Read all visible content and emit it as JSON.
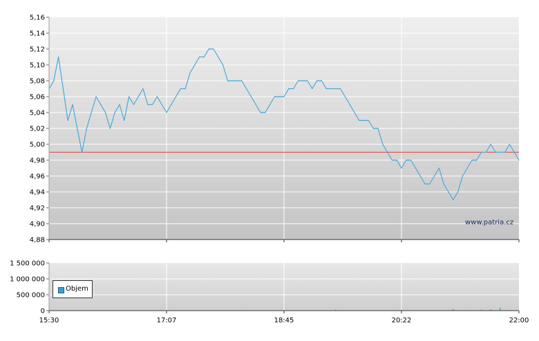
{
  "chart_data": [
    {
      "type": "line",
      "title": "",
      "xlabel": "",
      "ylabel": "",
      "ylim": [
        4.88,
        5.16
      ],
      "y_ticks": [
        "5,16",
        "5,14",
        "5,12",
        "5,10",
        "5,08",
        "5,06",
        "5,04",
        "5,02",
        "5,00",
        "4,98",
        "4,96",
        "4,94",
        "4,92",
        "4,90",
        "4,88"
      ],
      "x_ticks": [
        "15:30",
        "17:07",
        "18:45",
        "20:22",
        "22:00"
      ],
      "reference_line": {
        "value": 4.99,
        "color": "#e04040"
      },
      "grid": true,
      "line_color": "#4aa8d8",
      "x": [
        0,
        2,
        4,
        6,
        8,
        10,
        12,
        14,
        16,
        18,
        20,
        22,
        24,
        26,
        28,
        30,
        32,
        34,
        36,
        38,
        40,
        42,
        44,
        46,
        48,
        50,
        52,
        54,
        56,
        58,
        60,
        62,
        64,
        66,
        68,
        70,
        72,
        74,
        76,
        78,
        80,
        82,
        84,
        86,
        88,
        90,
        92,
        94,
        96,
        98,
        100,
        102,
        104,
        106,
        108,
        110,
        112,
        114,
        116,
        118,
        120,
        122,
        124,
        126,
        128,
        130,
        132,
        134,
        136,
        138,
        140,
        142,
        144,
        146,
        148,
        150,
        152,
        154,
        156,
        158,
        160,
        162,
        164,
        166,
        168,
        170,
        172,
        174,
        176,
        178,
        180,
        182,
        184,
        186,
        188,
        190,
        192,
        194,
        196,
        198,
        200
      ],
      "values": [
        5.07,
        5.08,
        5.11,
        5.07,
        5.03,
        5.05,
        5.02,
        4.99,
        5.02,
        5.04,
        5.06,
        5.05,
        5.04,
        5.02,
        5.04,
        5.05,
        5.03,
        5.06,
        5.05,
        5.06,
        5.07,
        5.05,
        5.05,
        5.06,
        5.05,
        5.04,
        5.05,
        5.06,
        5.07,
        5.07,
        5.09,
        5.1,
        5.11,
        5.11,
        5.12,
        5.12,
        5.11,
        5.1,
        5.08,
        5.08,
        5.08,
        5.08,
        5.07,
        5.06,
        5.05,
        5.04,
        5.04,
        5.05,
        5.06,
        5.06,
        5.06,
        5.07,
        5.07,
        5.08,
        5.08,
        5.08,
        5.07,
        5.08,
        5.08,
        5.07,
        5.07,
        5.07,
        5.07,
        5.06,
        5.05,
        5.04,
        5.03,
        5.03,
        5.03,
        5.02,
        5.02,
        5.0,
        4.99,
        4.98,
        4.98,
        4.97,
        4.98,
        4.98,
        4.97,
        4.96,
        4.95,
        4.95,
        4.96,
        4.97,
        4.95,
        4.94,
        4.93,
        4.94,
        4.96,
        4.97,
        4.98,
        4.98,
        4.99,
        4.99,
        5.0,
        4.99,
        4.99,
        4.99,
        5.0,
        4.99,
        4.98
      ]
    },
    {
      "type": "bar",
      "title": "",
      "xlabel": "",
      "ylabel": "",
      "ylim": [
        0,
        1500000
      ],
      "y_ticks": [
        "1 500 000",
        "1 000 000",
        "500 000",
        "0"
      ],
      "x_ticks": [
        "15:30",
        "17:07",
        "18:45",
        "20:22",
        "22:00"
      ],
      "grid": true,
      "series": [
        {
          "name": "Objem",
          "color": "#3aa0d0",
          "x": [
            40,
            62,
            82,
            102,
            122,
            140,
            150,
            166,
            172,
            178,
            184,
            188,
            192,
            196
          ],
          "values": [
            12000,
            8000,
            15000,
            10000,
            30000,
            12000,
            20000,
            10000,
            50000,
            15000,
            25000,
            40000,
            90000,
            20000
          ]
        }
      ]
    }
  ],
  "watermark": "www.patria.cz"
}
